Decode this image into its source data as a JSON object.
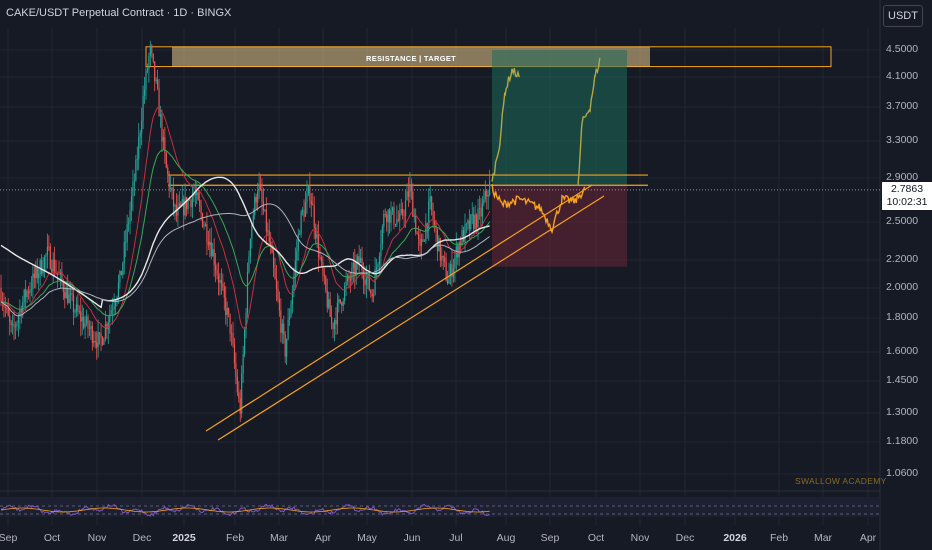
{
  "header": {
    "symbol_title": "CAKE/USDT Perpetual Contract · 1D · BINGX",
    "currency_button": "USDT"
  },
  "annotations": {
    "zone_label": "RESISTANCE | TARGET",
    "watermark": "SWALLOW ACADEMY"
  },
  "price_marker": {
    "price": "2.7863",
    "countdown": "10:02:31"
  },
  "colors": {
    "background": "#161a25",
    "up": "#26a69a",
    "down": "#ef5350",
    "orange": "#f7a21b",
    "target_zone": "#e8c98d",
    "projection_up": "#b5a642",
    "ema_red": "#c2313f",
    "ema_green": "#3aa655",
    "ma_white": "#e8e8e8"
  },
  "chart_data": {
    "type": "candlestick",
    "title": "CAKE/USDT Perpetual Contract · 1D · BINGX",
    "y_axis": {
      "scale": "log",
      "tick_labels": [
        "4.5000",
        "4.1000",
        "3.7000",
        "3.3000",
        "2.9000",
        "2.5000",
        "2.2000",
        "2.0000",
        "1.8000",
        "1.6000",
        "1.4500",
        "1.3000",
        "1.1800",
        "1.0600"
      ]
    },
    "x_axis": {
      "tick_labels": [
        "Sep",
        "Oct",
        "Nov",
        "Dec",
        "2025",
        "Feb",
        "Mar",
        "Apr",
        "May",
        "Jun",
        "Jul",
        "Aug",
        "Sep",
        "Oct",
        "Nov",
        "Dec",
        "2026",
        "Feb",
        "Mar",
        "Apr"
      ],
      "year_labels": [
        "2025",
        "2026"
      ]
    },
    "last_price": 2.7863,
    "resistance_target_zone": [
      4.25,
      4.55
    ],
    "support_resistance_lines": [
      2.83,
      2.93
    ],
    "position_tool": {
      "entry": 2.83,
      "target": 4.5,
      "stop": 2.15
    },
    "ascending_trendline": "rising support from Feb 2025 lows toward the last price",
    "indicators": [
      "EMA (red)",
      "EMA (green)",
      "MA (white)",
      "MA (light grey)",
      "RSI (bottom pane)"
    ],
    "grid": true
  }
}
